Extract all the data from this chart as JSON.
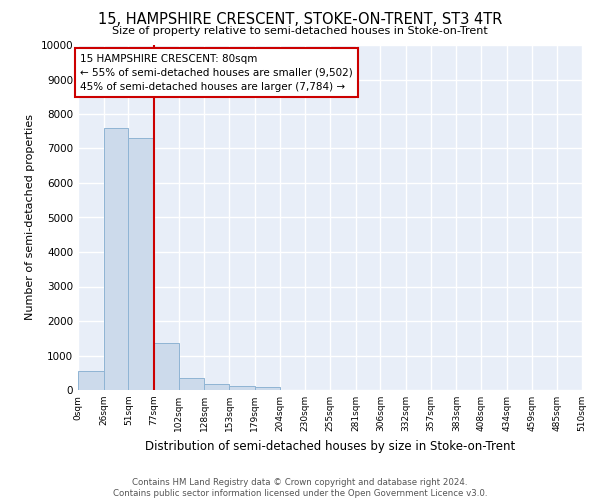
{
  "title": "15, HAMPSHIRE CRESCENT, STOKE-ON-TRENT, ST3 4TR",
  "subtitle": "Size of property relative to semi-detached houses in Stoke-on-Trent",
  "xlabel": "Distribution of semi-detached houses by size in Stoke-on-Trent",
  "ylabel": "Number of semi-detached properties",
  "footer": "Contains HM Land Registry data © Crown copyright and database right 2024.\nContains public sector information licensed under the Open Government Licence v3.0.",
  "bin_labels": [
    "0sqm",
    "26sqm",
    "51sqm",
    "77sqm",
    "102sqm",
    "128sqm",
    "153sqm",
    "179sqm",
    "204sqm",
    "230sqm",
    "255sqm",
    "281sqm",
    "306sqm",
    "332sqm",
    "357sqm",
    "383sqm",
    "408sqm",
    "434sqm",
    "459sqm",
    "485sqm",
    "510sqm"
  ],
  "bar_values": [
    550,
    7600,
    7300,
    1350,
    350,
    175,
    125,
    80,
    0,
    0,
    0,
    0,
    0,
    0,
    0,
    0,
    0,
    0,
    0,
    0
  ],
  "bar_color": "#ccdaeb",
  "bar_edge_color": "#8fb4d4",
  "property_line_x": 77,
  "property_line_color": "#cc0000",
  "annotation_text": "15 HAMPSHIRE CRESCENT: 80sqm\n← 55% of semi-detached houses are smaller (9,502)\n45% of semi-detached houses are larger (7,784) →",
  "annotation_box_color": "#cc0000",
  "ylim": [
    0,
    10000
  ],
  "yticks": [
    0,
    1000,
    2000,
    3000,
    4000,
    5000,
    6000,
    7000,
    8000,
    9000,
    10000
  ],
  "bg_color": "#ffffff",
  "plot_bg_color": "#e8eef8",
  "grid_color": "#ffffff"
}
